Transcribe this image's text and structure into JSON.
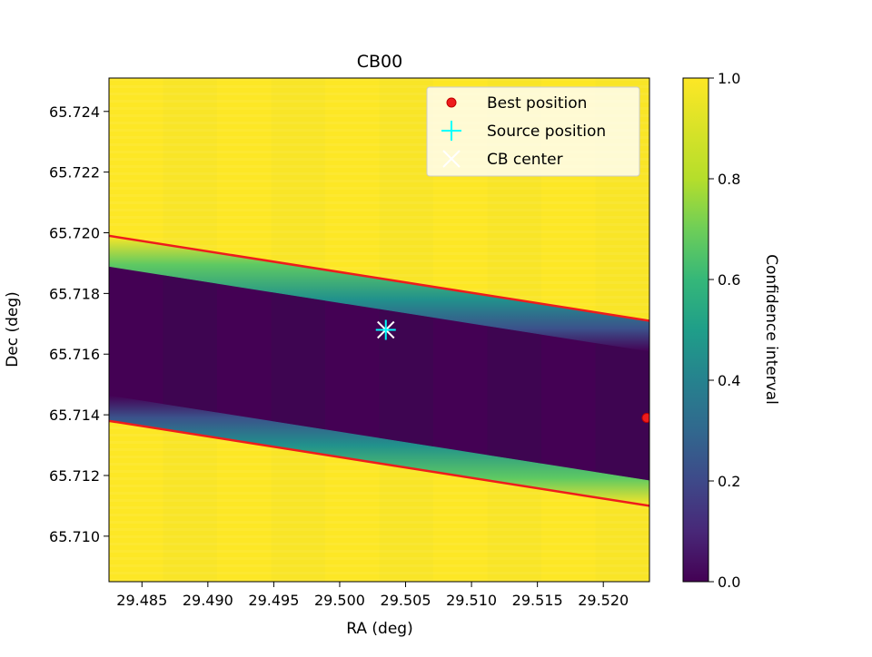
{
  "chart_data": {
    "type": "heatmap",
    "title": "CB00",
    "xlabel": "RA (deg)",
    "ylabel": "Dec (deg)",
    "xlim": [
      29.4825,
      29.5235
    ],
    "ylim": [
      65.7085,
      65.7251
    ],
    "x_ticks": [
      {
        "value": 29.485,
        "label": "29.485"
      },
      {
        "value": 29.49,
        "label": "29.490"
      },
      {
        "value": 29.495,
        "label": "29.495"
      },
      {
        "value": 29.5,
        "label": "29.500"
      },
      {
        "value": 29.505,
        "label": "29.505"
      },
      {
        "value": 29.51,
        "label": "29.510"
      },
      {
        "value": 29.515,
        "label": "29.515"
      },
      {
        "value": 29.52,
        "label": "29.520"
      }
    ],
    "y_ticks": [
      {
        "value": 65.71,
        "label": "65.710"
      },
      {
        "value": 65.712,
        "label": "65.712"
      },
      {
        "value": 65.714,
        "label": "65.714"
      },
      {
        "value": 65.716,
        "label": "65.716"
      },
      {
        "value": 65.718,
        "label": "65.718"
      },
      {
        "value": 65.72,
        "label": "65.720"
      },
      {
        "value": 65.722,
        "label": "65.722"
      },
      {
        "value": 65.724,
        "label": "65.724"
      }
    ],
    "band": {
      "upper_line": [
        [
          29.4825,
          65.7199
        ],
        [
          29.5235,
          65.7171
        ]
      ],
      "lower_line": [
        [
          29.4825,
          65.7138
        ],
        [
          29.5235,
          65.711
        ]
      ],
      "inside_value": 0.05,
      "outside_value": 1.0
    },
    "colorbar": {
      "label": "Confidence interval",
      "range": [
        0.0,
        1.0
      ],
      "ticks": [
        {
          "value": 0.0,
          "label": "0.0"
        },
        {
          "value": 0.2,
          "label": "0.2"
        },
        {
          "value": 0.4,
          "label": "0.4"
        },
        {
          "value": 0.6,
          "label": "0.6"
        },
        {
          "value": 0.8,
          "label": "0.8"
        },
        {
          "value": 1.0,
          "label": "1.0"
        }
      ]
    },
    "points": {
      "best_position": {
        "x": 29.5235,
        "y": 65.7139
      },
      "source_position": {
        "x": 29.5035,
        "y": 65.7168
      },
      "cb_center": {
        "x": 29.5035,
        "y": 65.7168
      }
    },
    "legend": {
      "placement": "upper right",
      "entries": [
        {
          "key": "best_position",
          "label": "Best position"
        },
        {
          "key": "source_position",
          "label": "Source position"
        },
        {
          "key": "cb_center",
          "label": "CB center"
        }
      ]
    },
    "colors": {
      "line": "#ee1c1c",
      "best_position": "#ee1c1c",
      "source_position": "#00ffff",
      "cb_center": "#ffffff",
      "viridis_low": "#440154",
      "viridis_high": "#fde725"
    }
  }
}
